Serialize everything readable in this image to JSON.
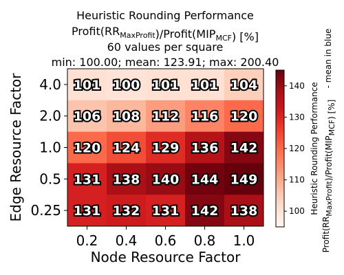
{
  "chart_data": {
    "type": "heatmap",
    "title_lines": [
      "Heuristic Rounding Performance",
      "Profit(RR_MaxProfit)/Profit(MIP_MCF) [%]",
      "60 values per square",
      "min: 100.00; mean: 123.91; max: 200.40"
    ],
    "xlabel": "Node Resource Factor",
    "ylabel": "Edge Resource Factor",
    "x_categories": [
      "0.2",
      "0.4",
      "0.6",
      "0.8",
      "1.0"
    ],
    "y_categories": [
      "4.0",
      "2.0",
      "1.0",
      "0.5",
      "0.25"
    ],
    "values": [
      [
        101,
        100,
        101,
        101,
        104
      ],
      [
        106,
        108,
        112,
        116,
        120
      ],
      [
        120,
        124,
        129,
        136,
        142
      ],
      [
        131,
        138,
        140,
        144,
        149
      ],
      [
        131,
        132,
        131,
        142,
        138
      ]
    ],
    "colorbar": {
      "range": [
        95,
        145
      ],
      "ticks": [
        100,
        110,
        120,
        130,
        140
      ],
      "label_line1": "Heuristic Rounding Performance",
      "label_line2": "Profit(RR_MaxProfit)/Profit(MIP_MCF) [%]",
      "side_note": "- mean in blue",
      "colormap": "Reds"
    }
  }
}
